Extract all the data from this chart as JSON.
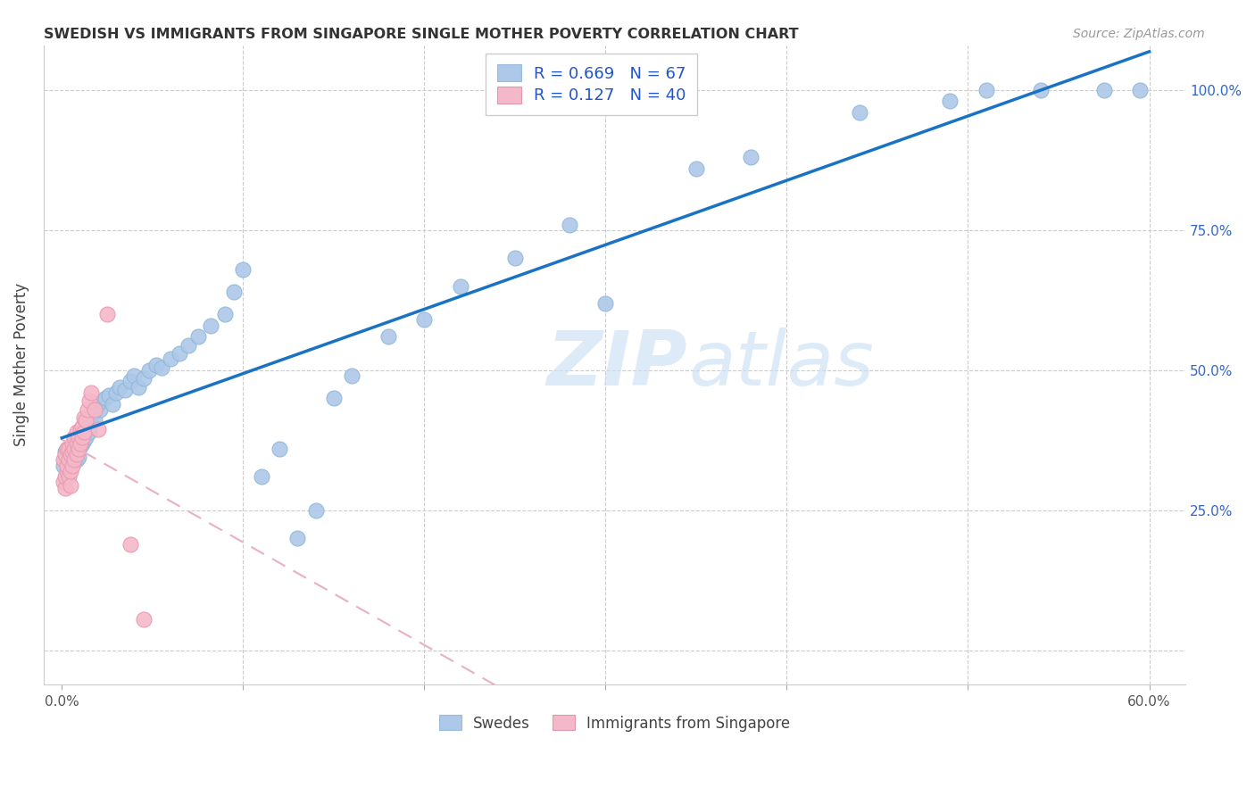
{
  "title": "SWEDISH VS IMMIGRANTS FROM SINGAPORE SINGLE MOTHER POVERTY CORRELATION CHART",
  "source": "Source: ZipAtlas.com",
  "ylabel": "Single Mother Poverty",
  "swedes_R": 0.669,
  "swedes_N": 67,
  "singapore_R": 0.127,
  "singapore_N": 40,
  "swedes_color": "#adc8e8",
  "singapore_color": "#f5b8c8",
  "trendline_swedes_color": "#1a72c4",
  "trendline_singapore_color": "#e8b0c0",
  "background_color": "#ffffff",
  "legend_label_swedes": "Swedes",
  "legend_label_singapore": "Immigrants from Singapore",
  "watermark": "ZIPatlas",
  "watermark_color": "#d8eaf8",
  "swedes_x": [
    0.001,
    0.002,
    0.002,
    0.003,
    0.003,
    0.004,
    0.004,
    0.005,
    0.005,
    0.006,
    0.006,
    0.007,
    0.007,
    0.008,
    0.008,
    0.009,
    0.01,
    0.011,
    0.012,
    0.013,
    0.015,
    0.016,
    0.018,
    0.019,
    0.021,
    0.022,
    0.024,
    0.026,
    0.028,
    0.03,
    0.032,
    0.035,
    0.038,
    0.04,
    0.042,
    0.045,
    0.048,
    0.052,
    0.055,
    0.06,
    0.065,
    0.07,
    0.075,
    0.082,
    0.09,
    0.095,
    0.1,
    0.11,
    0.12,
    0.13,
    0.14,
    0.15,
    0.16,
    0.18,
    0.2,
    0.22,
    0.25,
    0.28,
    0.3,
    0.35,
    0.38,
    0.44,
    0.49,
    0.51,
    0.54,
    0.575,
    0.595
  ],
  "swedes_y": [
    0.33,
    0.355,
    0.34,
    0.345,
    0.36,
    0.335,
    0.35,
    0.33,
    0.345,
    0.34,
    0.355,
    0.35,
    0.36,
    0.34,
    0.355,
    0.345,
    0.365,
    0.37,
    0.375,
    0.38,
    0.39,
    0.42,
    0.41,
    0.435,
    0.43,
    0.445,
    0.45,
    0.455,
    0.44,
    0.46,
    0.47,
    0.465,
    0.48,
    0.49,
    0.47,
    0.485,
    0.5,
    0.51,
    0.505,
    0.52,
    0.53,
    0.545,
    0.56,
    0.58,
    0.6,
    0.64,
    0.68,
    0.31,
    0.36,
    0.2,
    0.25,
    0.45,
    0.49,
    0.56,
    0.59,
    0.65,
    0.7,
    0.76,
    0.62,
    0.86,
    0.88,
    0.96,
    0.98,
    1.0,
    1.0,
    1.0,
    1.0
  ],
  "singapore_x": [
    0.001,
    0.001,
    0.002,
    0.002,
    0.002,
    0.003,
    0.003,
    0.003,
    0.004,
    0.004,
    0.004,
    0.005,
    0.005,
    0.005,
    0.006,
    0.006,
    0.006,
    0.007,
    0.007,
    0.007,
    0.008,
    0.008,
    0.008,
    0.009,
    0.009,
    0.01,
    0.01,
    0.011,
    0.011,
    0.012,
    0.012,
    0.013,
    0.014,
    0.015,
    0.016,
    0.018,
    0.02,
    0.025,
    0.038,
    0.045
  ],
  "singapore_y": [
    0.34,
    0.3,
    0.29,
    0.31,
    0.35,
    0.32,
    0.33,
    0.36,
    0.31,
    0.34,
    0.36,
    0.295,
    0.32,
    0.35,
    0.33,
    0.355,
    0.37,
    0.34,
    0.36,
    0.38,
    0.35,
    0.37,
    0.39,
    0.36,
    0.38,
    0.37,
    0.395,
    0.38,
    0.4,
    0.39,
    0.415,
    0.41,
    0.43,
    0.445,
    0.46,
    0.43,
    0.395,
    0.6,
    0.19,
    0.055
  ],
  "xlim": [
    0.0,
    0.6
  ],
  "ylim": [
    0.0,
    1.0
  ],
  "x_ticks": [
    0.0,
    0.1,
    0.2,
    0.3,
    0.4,
    0.5,
    0.6
  ],
  "y_ticks": [
    0.0,
    0.25,
    0.5,
    0.75,
    1.0
  ]
}
